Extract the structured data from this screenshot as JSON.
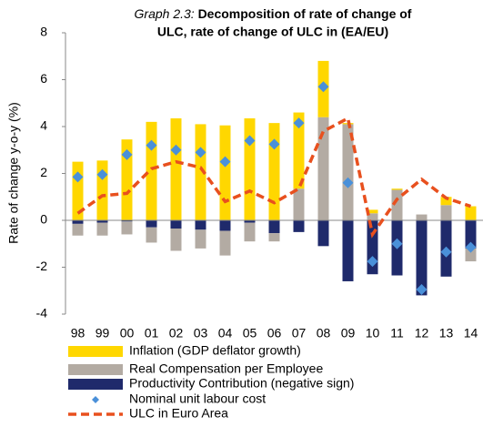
{
  "chart_data": {
    "type": "stacked_bar_line",
    "title_label": "Graph 2.3:",
    "title": [
      "Decomposition of rate of change of",
      "ULC, rate of change of ULC in (EA/EU)"
    ],
    "ylabel": "Rate of change y-o-y (%)",
    "categories": [
      "98",
      "99",
      "00",
      "01",
      "02",
      "03",
      "04",
      "05",
      "06",
      "07",
      "08",
      "09",
      "10",
      "11",
      "12",
      "13",
      "14"
    ],
    "ylim": [
      -4,
      8
    ],
    "yticks": [
      -4,
      -2,
      0,
      2,
      4,
      6,
      8
    ],
    "series": [
      {
        "name": "Inflation (GDP deflator growth)",
        "color": "#ffd700",
        "kind": "bar",
        "values": [
          2.5,
          2.55,
          3.45,
          4.2,
          4.35,
          4.1,
          4.05,
          4.35,
          4.15,
          3.25,
          2.4,
          0.05,
          0.15,
          0.05,
          0,
          0.35,
          0.6
        ]
      },
      {
        "name": "Real Compensation per Employee",
        "color": "#b3aba3",
        "kind": "bar",
        "values": [
          -0.5,
          -0.55,
          -0.55,
          -0.65,
          -0.95,
          -0.8,
          -1.05,
          -0.8,
          -0.35,
          1.35,
          4.4,
          4.1,
          0.3,
          1.3,
          0.25,
          0.65,
          -0.55
        ]
      },
      {
        "name": "Productivity Contribution (negative sign)",
        "color": "#1f2a6b",
        "kind": "bar",
        "values": [
          -0.15,
          -0.1,
          -0.05,
          -0.3,
          -0.35,
          -0.4,
          -0.45,
          -0.1,
          -0.55,
          -0.5,
          -1.1,
          -2.6,
          -2.3,
          -2.35,
          -3.2,
          -2.4,
          -1.2
        ]
      },
      {
        "name": "Nominal unit labour cost",
        "color": "#4a90d9",
        "kind": "marker",
        "values": [
          1.85,
          1.95,
          2.8,
          3.2,
          3.0,
          2.9,
          2.5,
          3.4,
          3.25,
          4.15,
          5.7,
          1.6,
          -1.75,
          -1.0,
          -2.95,
          -1.35,
          -1.15
        ]
      },
      {
        "name": "ULC in Euro Area",
        "color": "#e8501e",
        "kind": "line",
        "values": [
          0.3,
          1.05,
          1.15,
          2.2,
          2.5,
          2.25,
          0.8,
          1.25,
          0.75,
          1.35,
          3.8,
          4.35,
          -0.6,
          0.9,
          1.75,
          0.95,
          0.6
        ]
      }
    ]
  }
}
